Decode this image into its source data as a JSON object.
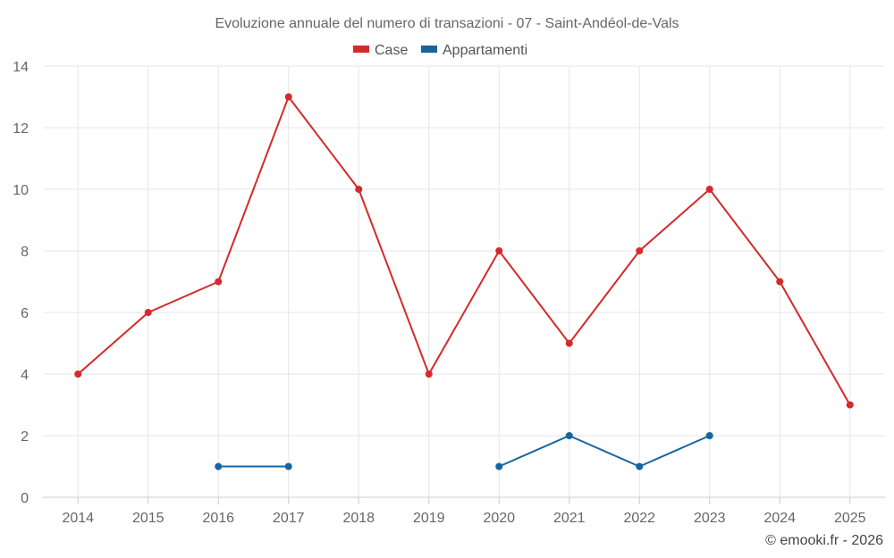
{
  "chart_data": {
    "type": "line",
    "title": "Evoluzione annuale del numero di transazioni - 07 - Saint-Andéol-de-Vals",
    "categories": [
      "2014",
      "2015",
      "2016",
      "2017",
      "2018",
      "2019",
      "2020",
      "2021",
      "2022",
      "2023",
      "2024",
      "2025"
    ],
    "series": [
      {
        "name": "Case",
        "color": "#d42a2a",
        "values": [
          4,
          6,
          7,
          13,
          10,
          4,
          8,
          5,
          8,
          10,
          7,
          3
        ]
      },
      {
        "name": "Appartamenti",
        "color": "#1565a0",
        "values": [
          null,
          null,
          1,
          1,
          null,
          null,
          1,
          2,
          1,
          2,
          null,
          null
        ]
      }
    ],
    "ylim": [
      0,
      14
    ],
    "yticks": [
      0,
      2,
      4,
      6,
      8,
      10,
      12,
      14
    ],
    "xlabel": "",
    "ylabel": "",
    "grid": true,
    "legend_position": "top-center"
  },
  "credit": "© emooki.fr - 2026"
}
